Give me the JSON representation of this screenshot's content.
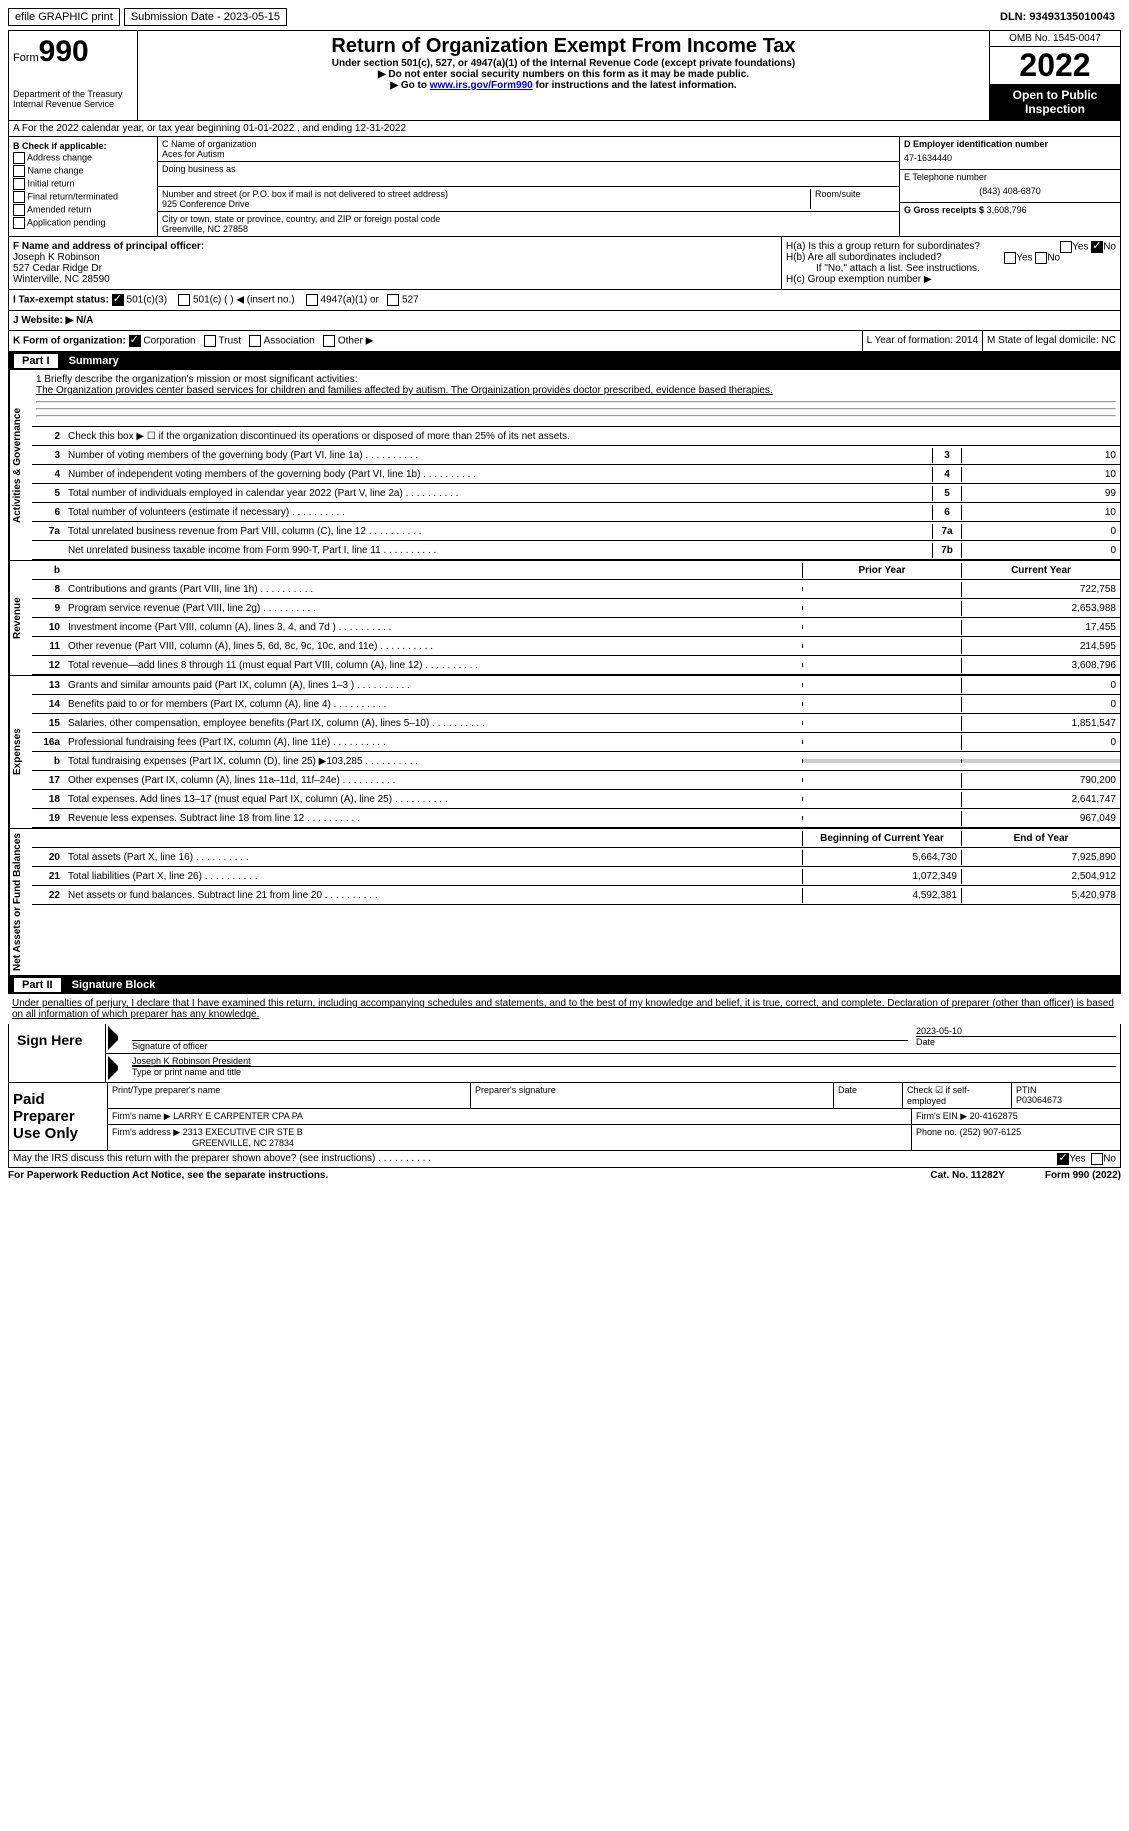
{
  "top": {
    "efile": "efile GRAPHIC print",
    "sub_label": "Submission Date - 2023-05-15",
    "dln": "DLN: 93493135010043"
  },
  "header": {
    "form_prefix": "Form",
    "form_num": "990",
    "dept": "Department of the Treasury\nInternal Revenue Service",
    "title": "Return of Organization Exempt From Income Tax",
    "subtitle": "Under section 501(c), 527, or 4947(a)(1) of the Internal Revenue Code (except private foundations)",
    "instr1": "▶ Do not enter social security numbers on this form as it may be made public.",
    "instr2_pre": "▶ Go to ",
    "instr2_link": "www.irs.gov/Form990",
    "instr2_post": " for instructions and the latest information.",
    "omb": "OMB No. 1545-0047",
    "year": "2022",
    "open": "Open to Public Inspection"
  },
  "row_a": "A For the 2022 calendar year, or tax year beginning 01-01-2022    , and ending 12-31-2022",
  "col_b": {
    "title": "B Check if applicable:",
    "items": [
      "Address change",
      "Name change",
      "Initial return",
      "Final return/terminated",
      "Amended return",
      "Application pending"
    ]
  },
  "col_c": {
    "name_label": "C Name of organization",
    "name": "Aces for Autism",
    "dba_label": "Doing business as",
    "street_label": "Number and street (or P.O. box if mail is not delivered to street address)",
    "room_label": "Room/suite",
    "street": "925 Conference Drive",
    "city_label": "City or town, state or province, country, and ZIP or foreign postal code",
    "city": "Greenville, NC  27858"
  },
  "col_d": {
    "ein_label": "D Employer identification number",
    "ein": "47-1634440",
    "phone_label": "E Telephone number",
    "phone": "(843) 408-6870",
    "gross_label": "G Gross receipts $",
    "gross": "3,608,796"
  },
  "col_f": {
    "label": "F Name and address of principal officer:",
    "name": "Joseph K Robinson",
    "addr1": "527 Cedar Ridge Dr",
    "addr2": "Winterville, NC  28590"
  },
  "col_h": {
    "ha": "H(a)  Is this a group return for subordinates?",
    "hb": "H(b)  Are all subordinates included?",
    "hb_note": "If \"No,\" attach a list. See instructions.",
    "hc": "H(c)  Group exemption number ▶"
  },
  "row_i": {
    "label": "I  Tax-exempt status:",
    "opts": [
      "501(c)(3)",
      "501(c) (  ) ◀ (insert no.)",
      "4947(a)(1) or",
      "527"
    ]
  },
  "row_j": "J  Website: ▶    N/A",
  "row_k": {
    "k_label": "K Form of organization:",
    "k_opts": [
      "Corporation",
      "Trust",
      "Association",
      "Other ▶"
    ],
    "l": "L Year of formation: 2014",
    "m": "M State of legal domicile: NC"
  },
  "part1": {
    "title_num": "Part I",
    "title": "Summary",
    "mission_label": "1   Briefly describe the organization's mission or most significant activities:",
    "mission": "The Organization provides center based services for children and families affected by autism. The Orgainization provides doctor prescribed, evidence based therapies.",
    "line2": "Check this box ▶ ☐  if the organization discontinued its operations or disposed of more than 25% of its net assets.",
    "sections": {
      "gov": "Activities & Governance",
      "rev": "Revenue",
      "exp": "Expenses",
      "net": "Net Assets or Fund Balances"
    },
    "lines_gov": [
      {
        "n": "3",
        "label": "Number of voting members of the governing body (Part VI, line 1a)",
        "box": "3",
        "val": "10"
      },
      {
        "n": "4",
        "label": "Number of independent voting members of the governing body (Part VI, line 1b)",
        "box": "4",
        "val": "10"
      },
      {
        "n": "5",
        "label": "Total number of individuals employed in calendar year 2022 (Part V, line 2a)",
        "box": "5",
        "val": "99"
      },
      {
        "n": "6",
        "label": "Total number of volunteers (estimate if necessary)",
        "box": "6",
        "val": "10"
      },
      {
        "n": "7a",
        "label": "Total unrelated business revenue from Part VIII, column (C), line 12",
        "box": "7a",
        "val": "0"
      },
      {
        "n": "",
        "label": "Net unrelated business taxable income from Form 990-T, Part I, line 11",
        "box": "7b",
        "val": "0"
      }
    ],
    "header_prior": "Prior Year",
    "header_curr": "Current Year",
    "lines_rev": [
      {
        "n": "8",
        "label": "Contributions and grants (Part VIII, line 1h)",
        "prior": "",
        "curr": "722,758"
      },
      {
        "n": "9",
        "label": "Program service revenue (Part VIII, line 2g)",
        "prior": "",
        "curr": "2,653,988"
      },
      {
        "n": "10",
        "label": "Investment income (Part VIII, column (A), lines 3, 4, and 7d )",
        "prior": "",
        "curr": "17,455"
      },
      {
        "n": "11",
        "label": "Other revenue (Part VIII, column (A), lines 5, 6d, 8c, 9c, 10c, and 11e)",
        "prior": "",
        "curr": "214,595"
      },
      {
        "n": "12",
        "label": "Total revenue—add lines 8 through 11 (must equal Part VIII, column (A), line 12)",
        "prior": "",
        "curr": "3,608,796"
      }
    ],
    "lines_exp": [
      {
        "n": "13",
        "label": "Grants and similar amounts paid (Part IX, column (A), lines 1–3 )",
        "prior": "",
        "curr": "0"
      },
      {
        "n": "14",
        "label": "Benefits paid to or for members (Part IX, column (A), line 4)",
        "prior": "",
        "curr": "0"
      },
      {
        "n": "15",
        "label": "Salaries, other compensation, employee benefits (Part IX, column (A), lines 5–10)",
        "prior": "",
        "curr": "1,851,547"
      },
      {
        "n": "16a",
        "label": "Professional fundraising fees (Part IX, column (A), line 11e)",
        "prior": "",
        "curr": "0"
      },
      {
        "n": "b",
        "label": "Total fundraising expenses (Part IX, column (D), line 25) ▶103,285",
        "prior": "gray",
        "curr": "gray"
      },
      {
        "n": "17",
        "label": "Other expenses (Part IX, column (A), lines 11a–11d, 11f–24e)",
        "prior": "",
        "curr": "790,200"
      },
      {
        "n": "18",
        "label": "Total expenses. Add lines 13–17 (must equal Part IX, column (A), line 25)",
        "prior": "",
        "curr": "2,641,747"
      },
      {
        "n": "19",
        "label": "Revenue less expenses. Subtract line 18 from line 12",
        "prior": "",
        "curr": "967,049"
      }
    ],
    "header_begin": "Beginning of Current Year",
    "header_end": "End of Year",
    "lines_net": [
      {
        "n": "20",
        "label": "Total assets (Part X, line 16)",
        "prior": "5,664,730",
        "curr": "7,925,890"
      },
      {
        "n": "21",
        "label": "Total liabilities (Part X, line 26)",
        "prior": "1,072,349",
        "curr": "2,504,912"
      },
      {
        "n": "22",
        "label": "Net assets or fund balances. Subtract line 21 from line 20",
        "prior": "4,592,381",
        "curr": "5,420,978"
      }
    ]
  },
  "part2": {
    "title_num": "Part II",
    "title": "Signature Block",
    "intro": "Under penalties of perjury, I declare that I have examined this return, including accompanying schedules and statements, and to the best of my knowledge and belief, it is true, correct, and complete. Declaration of preparer (other than officer) is based on all information of which preparer has any knowledge.",
    "sign_here": "Sign Here",
    "sig_officer": "Signature of officer",
    "sig_date": "2023-05-10",
    "date_label": "Date",
    "officer_name": "Joseph K Robinson  President",
    "name_label": "Type or print name and title",
    "paid": "Paid Preparer Use Only",
    "prep_name_label": "Print/Type preparer's name",
    "prep_sig_label": "Preparer's signature",
    "prep_date_label": "Date",
    "check_self": "Check ☑ if self-employed",
    "ptin_label": "PTIN",
    "ptin": "P03064673",
    "firm_name_label": "Firm's name    ▶",
    "firm_name": "LARRY E CARPENTER CPA PA",
    "firm_ein_label": "Firm's EIN ▶",
    "firm_ein": "20-4162875",
    "firm_addr_label": "Firm's address ▶",
    "firm_addr": "2313 EXECUTIVE CIR STE B",
    "firm_city": "GREENVILLE, NC  27834",
    "firm_phone_label": "Phone no.",
    "firm_phone": "(252) 907-6125",
    "discuss": "May the IRS discuss this return with the preparer shown above? (see instructions)",
    "paperwork": "For Paperwork Reduction Act Notice, see the separate instructions.",
    "cat": "Cat. No. 11282Y",
    "form_foot": "Form 990 (2022)"
  }
}
